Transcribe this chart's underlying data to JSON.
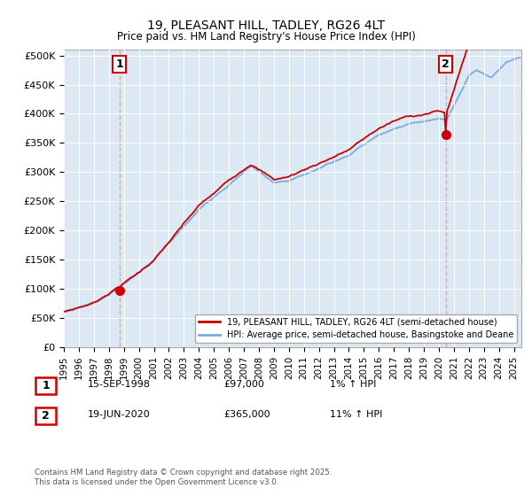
{
  "title": "19, PLEASANT HILL, TADLEY, RG26 4LT",
  "subtitle": "Price paid vs. HM Land Registry's House Price Index (HPI)",
  "yticks": [
    0,
    50000,
    100000,
    150000,
    200000,
    250000,
    300000,
    350000,
    400000,
    450000,
    500000
  ],
  "ytick_labels": [
    "£0",
    "£50K",
    "£100K",
    "£150K",
    "£200K",
    "£250K",
    "£300K",
    "£350K",
    "£400K",
    "£450K",
    "£500K"
  ],
  "xlim_start": 1995.0,
  "xlim_end": 2025.5,
  "ylim_max": 510000,
  "sale1_x": 1998.71,
  "sale1_y": 97000,
  "sale1_label": "1",
  "sale2_x": 2020.46,
  "sale2_y": 365000,
  "sale2_label": "2",
  "red_line_color": "#cc0000",
  "blue_line_color": "#7aacdc",
  "dashed_line_color": "#ff9999",
  "background_color": "#ffffff",
  "plot_bg_color": "#dce9f5",
  "grid_color": "#ffffff",
  "legend_label_red": "19, PLEASANT HILL, TADLEY, RG26 4LT (semi-detached house)",
  "legend_label_blue": "HPI: Average price, semi-detached house, Basingstoke and Deane",
  "sale1_date": "15-SEP-1998",
  "sale1_price": "£97,000",
  "sale1_hpi": "1% ↑ HPI",
  "sale2_date": "19-JUN-2020",
  "sale2_price": "£365,000",
  "sale2_hpi": "11% ↑ HPI",
  "footer": "Contains HM Land Registry data © Crown copyright and database right 2025.\nThis data is licensed under the Open Government Licence v3.0."
}
